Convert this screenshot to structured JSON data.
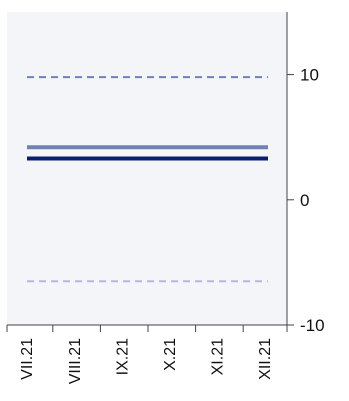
{
  "chart_data": {
    "type": "line",
    "categories": [
      "VII.21",
      "VIII.21",
      "IX.21",
      "X.21",
      "XI.21",
      "XII.21"
    ],
    "y_axis": {
      "side": "right",
      "ylim": [
        -10,
        15
      ],
      "ticks": [
        -10,
        0,
        10
      ]
    },
    "grid": false,
    "legend": "none",
    "series": [
      {
        "values": [
          9.8,
          9.8,
          9.8,
          9.8,
          9.8,
          9.8
        ],
        "style": "dashed",
        "color": "#6f7fb8"
      },
      {
        "values": [
          4.2,
          4.2,
          4.2,
          4.2,
          4.2,
          4.2
        ],
        "style": "solid",
        "color": "#6e82b5"
      },
      {
        "values": [
          3.3,
          3.3,
          3.3,
          3.3,
          3.3,
          3.3
        ],
        "style": "solid",
        "color": "#0a1f6b"
      },
      {
        "values": [
          -6.5,
          -6.5,
          -6.5,
          -6.5,
          -6.5,
          -6.5
        ],
        "style": "dashed",
        "color": "#b8b6dc"
      }
    ],
    "plot_background": "#f4f5f9"
  }
}
